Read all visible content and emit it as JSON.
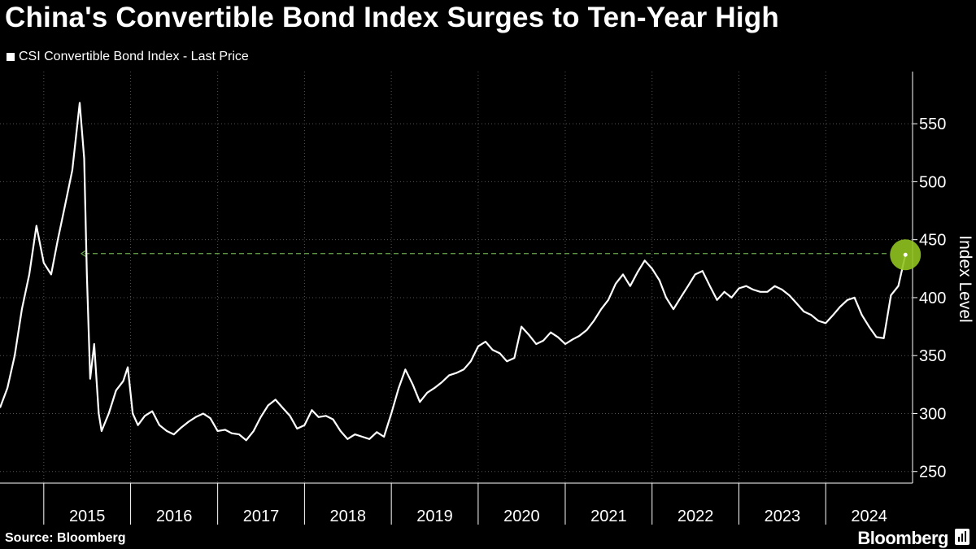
{
  "header": {
    "title": "China's Convertible Bond Index Surges to Ten-Year High"
  },
  "footer": {
    "source": "Source: Bloomberg",
    "brand": "Bloomberg"
  },
  "colors": {
    "background": "#000000",
    "line": "#ffffff",
    "highlight": "#8fc31f",
    "reference_line": "#6aa84f",
    "grid": "#555555"
  },
  "chart_data": {
    "type": "line",
    "title": "China's Convertible Bond Index Surges to Ten-Year High",
    "ylabel": "Index Level",
    "xlabel": "",
    "legend": {
      "position": "top-left",
      "entries": [
        "CSI Convertible Bond Index - Last Price"
      ]
    },
    "y_axis": {
      "side": "right",
      "min": 240,
      "max": 595,
      "ticks": [
        250,
        300,
        350,
        400,
        450,
        500,
        550
      ]
    },
    "x_axis": {
      "min": "2014-07-01",
      "max": "2024-12-31",
      "year_labels": [
        "2015",
        "2016",
        "2017",
        "2018",
        "2019",
        "2020",
        "2021",
        "2022",
        "2023",
        "2024"
      ]
    },
    "grid": true,
    "series": [
      {
        "name": "CSI Convertible Bond Index - Last Price",
        "points": [
          [
            "2014-07-01",
            305
          ],
          [
            "2014-08-01",
            322
          ],
          [
            "2014-09-01",
            350
          ],
          [
            "2014-10-01",
            390
          ],
          [
            "2014-11-01",
            420
          ],
          [
            "2014-12-01",
            462
          ],
          [
            "2015-01-01",
            430
          ],
          [
            "2015-02-01",
            420
          ],
          [
            "2015-03-01",
            450
          ],
          [
            "2015-04-01",
            480
          ],
          [
            "2015-05-01",
            510
          ],
          [
            "2015-06-01",
            568
          ],
          [
            "2015-06-20",
            520
          ],
          [
            "2015-07-01",
            420
          ],
          [
            "2015-07-15",
            330
          ],
          [
            "2015-08-01",
            360
          ],
          [
            "2015-08-20",
            300
          ],
          [
            "2015-09-01",
            285
          ],
          [
            "2015-10-01",
            300
          ],
          [
            "2015-11-01",
            320
          ],
          [
            "2015-12-01",
            328
          ],
          [
            "2015-12-20",
            340
          ],
          [
            "2016-01-10",
            300
          ],
          [
            "2016-02-01",
            290
          ],
          [
            "2016-03-01",
            298
          ],
          [
            "2016-04-01",
            302
          ],
          [
            "2016-05-01",
            290
          ],
          [
            "2016-06-01",
            285
          ],
          [
            "2016-07-01",
            282
          ],
          [
            "2016-08-01",
            288
          ],
          [
            "2016-09-01",
            293
          ],
          [
            "2016-10-01",
            297
          ],
          [
            "2016-11-01",
            300
          ],
          [
            "2016-12-01",
            296
          ],
          [
            "2017-01-01",
            285
          ],
          [
            "2017-02-01",
            286
          ],
          [
            "2017-03-01",
            283
          ],
          [
            "2017-04-01",
            282
          ],
          [
            "2017-05-01",
            277
          ],
          [
            "2017-06-01",
            285
          ],
          [
            "2017-07-01",
            297
          ],
          [
            "2017-08-01",
            307
          ],
          [
            "2017-09-01",
            312
          ],
          [
            "2017-10-01",
            305
          ],
          [
            "2017-11-01",
            298
          ],
          [
            "2017-12-01",
            287
          ],
          [
            "2018-01-01",
            290
          ],
          [
            "2018-02-01",
            303
          ],
          [
            "2018-03-01",
            297
          ],
          [
            "2018-04-01",
            298
          ],
          [
            "2018-05-01",
            295
          ],
          [
            "2018-06-01",
            285
          ],
          [
            "2018-07-01",
            278
          ],
          [
            "2018-08-01",
            282
          ],
          [
            "2018-09-01",
            280
          ],
          [
            "2018-10-01",
            278
          ],
          [
            "2018-11-01",
            284
          ],
          [
            "2018-12-01",
            280
          ],
          [
            "2019-01-01",
            300
          ],
          [
            "2019-02-01",
            322
          ],
          [
            "2019-03-01",
            338
          ],
          [
            "2019-04-01",
            325
          ],
          [
            "2019-05-01",
            310
          ],
          [
            "2019-06-01",
            318
          ],
          [
            "2019-07-01",
            322
          ],
          [
            "2019-08-01",
            327
          ],
          [
            "2019-09-01",
            333
          ],
          [
            "2019-10-01",
            335
          ],
          [
            "2019-11-01",
            338
          ],
          [
            "2019-12-01",
            345
          ],
          [
            "2020-01-01",
            358
          ],
          [
            "2020-02-01",
            362
          ],
          [
            "2020-03-01",
            355
          ],
          [
            "2020-04-01",
            352
          ],
          [
            "2020-05-01",
            345
          ],
          [
            "2020-06-01",
            348
          ],
          [
            "2020-07-01",
            375
          ],
          [
            "2020-08-01",
            368
          ],
          [
            "2020-09-01",
            360
          ],
          [
            "2020-10-01",
            363
          ],
          [
            "2020-11-01",
            370
          ],
          [
            "2020-12-01",
            366
          ],
          [
            "2021-01-01",
            360
          ],
          [
            "2021-02-01",
            364
          ],
          [
            "2021-03-01",
            367
          ],
          [
            "2021-04-01",
            372
          ],
          [
            "2021-05-01",
            380
          ],
          [
            "2021-06-01",
            390
          ],
          [
            "2021-07-01",
            398
          ],
          [
            "2021-08-01",
            412
          ],
          [
            "2021-09-01",
            420
          ],
          [
            "2021-10-01",
            410
          ],
          [
            "2021-11-01",
            422
          ],
          [
            "2021-12-01",
            432
          ],
          [
            "2022-01-01",
            425
          ],
          [
            "2022-02-01",
            415
          ],
          [
            "2022-03-01",
            400
          ],
          [
            "2022-04-01",
            390
          ],
          [
            "2022-05-01",
            400
          ],
          [
            "2022-06-01",
            410
          ],
          [
            "2022-07-01",
            420
          ],
          [
            "2022-08-01",
            423
          ],
          [
            "2022-09-01",
            410
          ],
          [
            "2022-10-01",
            398
          ],
          [
            "2022-11-01",
            405
          ],
          [
            "2022-12-01",
            400
          ],
          [
            "2023-01-01",
            408
          ],
          [
            "2023-02-01",
            410
          ],
          [
            "2023-03-01",
            407
          ],
          [
            "2023-04-01",
            405
          ],
          [
            "2023-05-01",
            405
          ],
          [
            "2023-06-01",
            410
          ],
          [
            "2023-07-01",
            407
          ],
          [
            "2023-08-01",
            402
          ],
          [
            "2023-09-01",
            395
          ],
          [
            "2023-10-01",
            388
          ],
          [
            "2023-11-01",
            385
          ],
          [
            "2023-12-01",
            380
          ],
          [
            "2024-01-01",
            378
          ],
          [
            "2024-02-01",
            385
          ],
          [
            "2024-03-01",
            392
          ],
          [
            "2024-04-01",
            398
          ],
          [
            "2024-05-01",
            400
          ],
          [
            "2024-06-01",
            385
          ],
          [
            "2024-07-01",
            375
          ],
          [
            "2024-08-01",
            366
          ],
          [
            "2024-09-01",
            365
          ],
          [
            "2024-10-01",
            402
          ],
          [
            "2024-11-01",
            410
          ],
          [
            "2024-12-01",
            437
          ]
        ]
      }
    ],
    "annotations": [
      {
        "type": "reference_line",
        "value": 438
      },
      {
        "type": "highlight_point",
        "date": "2024-12-01",
        "value": 437
      }
    ]
  }
}
